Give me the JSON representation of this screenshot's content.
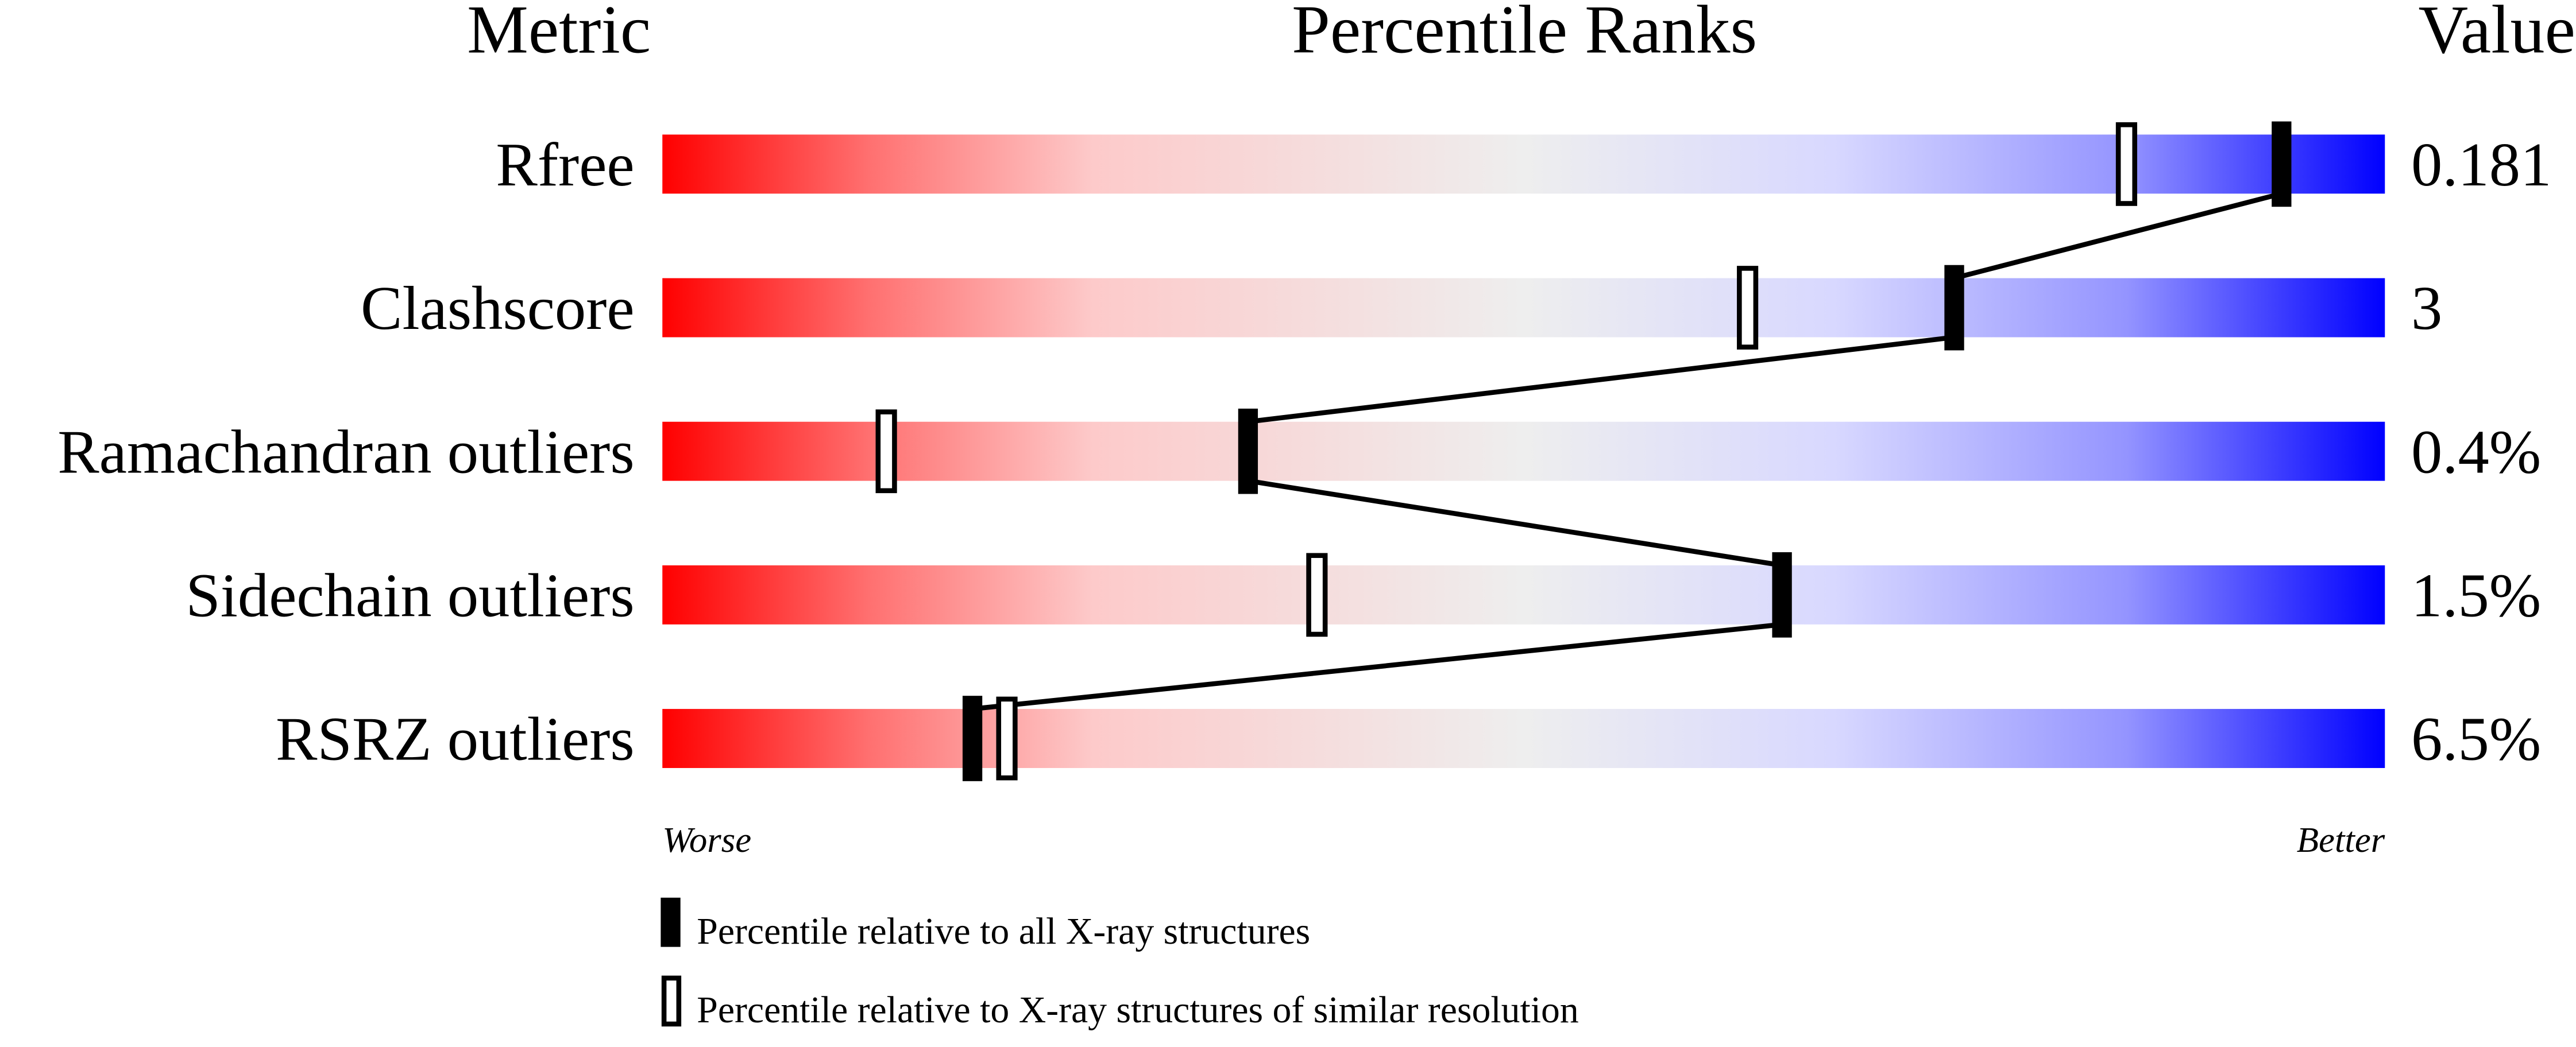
{
  "chart_data": {
    "type": "percentile-slider",
    "headers": {
      "metric": "Metric",
      "ranks": "Percentile Ranks",
      "value": "Value"
    },
    "xlim": [
      0,
      100
    ],
    "axis_labels": {
      "left": "Worse",
      "right": "Better"
    },
    "gradient_colors": [
      "#ff0000",
      "#eeeeee",
      "#0000ff"
    ],
    "metrics": [
      {
        "name": "Rfree",
        "value": "0.181",
        "percentile_all": 94,
        "percentile_similar": 85
      },
      {
        "name": "Clashscore",
        "value": "3",
        "percentile_all": 75,
        "percentile_similar": 63
      },
      {
        "name": "Ramachandran outliers",
        "value": "0.4%",
        "percentile_all": 34,
        "percentile_similar": 13
      },
      {
        "name": "Sidechain outliers",
        "value": "1.5%",
        "percentile_all": 65,
        "percentile_similar": 38
      },
      {
        "name": "RSRZ outliers",
        "value": "6.5%",
        "percentile_all": 18,
        "percentile_similar": 20
      }
    ],
    "legend": [
      {
        "marker": "filled",
        "label": "Percentile relative to all X-ray structures"
      },
      {
        "marker": "open",
        "label": "Percentile relative to X-ray structures of similar resolution"
      }
    ]
  }
}
